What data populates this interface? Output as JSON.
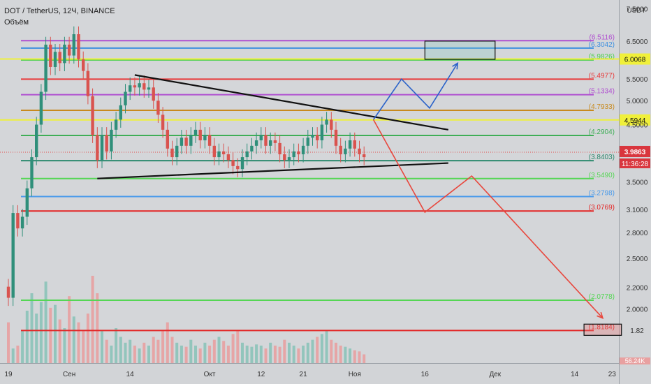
{
  "header": {
    "title": "DOT / TetherUS, 12Ч, BINANCE",
    "volume_label": "Объём"
  },
  "chart_data": {
    "type": "candlestick",
    "scale": "log",
    "ylim": [
      1.6,
      7.6
    ],
    "price_axis_unit": "USDT",
    "price_ticks": [
      7.5,
      6.5,
      5.5,
      5.0,
      4.5,
      4.0,
      3.5,
      3.1,
      2.8,
      2.5,
      2.2,
      2.0,
      1.82
    ],
    "time_ticks": [
      {
        "label": "19",
        "x": 0
      },
      {
        "label": "Сен",
        "x": 13
      },
      {
        "label": "14",
        "x": 26
      },
      {
        "label": "Окт",
        "x": 43
      },
      {
        "label": "12",
        "x": 54
      },
      {
        "label": "21",
        "x": 63
      },
      {
        "label": "Ноя",
        "x": 74
      },
      {
        "label": "16",
        "x": 89
      },
      {
        "label": "Дек",
        "x": 104
      },
      {
        "label": "14",
        "x": 121
      },
      {
        "label": "23",
        "x": 129
      }
    ],
    "fib_levels": [
      {
        "value": 6.5116,
        "label": "(6.5116)",
        "color": "#b050d0"
      },
      {
        "value": 6.3042,
        "label": "(6.3042)",
        "color": "#3d8fe0"
      },
      {
        "value": 5.9826,
        "label": "(5.9826)",
        "color": "#4cd04c"
      },
      {
        "value": 5.4977,
        "label": "(5.4977)",
        "color": "#e83a3a"
      },
      {
        "value": 5.1334,
        "label": "(5.1334)",
        "color": "#b050d0"
      },
      {
        "value": 4.7933,
        "label": "(4.7933)",
        "color": "#c88a1e"
      },
      {
        "value": 4.2904,
        "label": "(4.2904)",
        "color": "#3fae57"
      },
      {
        "value": 3.8403,
        "label": "(3.8403)",
        "color": "#2e8a6e"
      },
      {
        "value": 3.549,
        "label": "(3.5490)",
        "color": "#55d655"
      },
      {
        "value": 3.2798,
        "label": "(3.2798)",
        "color": "#4b9bea"
      },
      {
        "value": 3.0769,
        "label": "(3.0769)",
        "color": "#e32626"
      },
      {
        "value": 2.0778,
        "label": "(2.0778)",
        "color": "#55d655"
      },
      {
        "value": 1.8184,
        "label": "(1.8184)",
        "color": "#e32626"
      }
    ],
    "yellow_levels": [
      {
        "value": 6.0068,
        "label": "6.0068"
      },
      {
        "value": 4.5944,
        "label": "4.5944"
      }
    ],
    "current_price": {
      "value": 3.9863,
      "label": "3.9863",
      "countdown": "11:36:28"
    },
    "volume_tag": "56.24K",
    "triangle": {
      "upper": [
        [
          27,
          5.6
        ],
        [
          94,
          4.4
        ]
      ],
      "lower": [
        [
          19,
          3.55
        ],
        [
          94,
          3.8
        ]
      ]
    },
    "scenario_up": [
      [
        78,
        4.6
      ],
      [
        84,
        5.5
      ],
      [
        90,
        4.84
      ],
      [
        96,
        5.9
      ]
    ],
    "scenario_down": [
      [
        78,
        4.6
      ],
      [
        89,
        3.06
      ],
      [
        99,
        3.59
      ],
      [
        127,
        1.92
      ]
    ],
    "target_box_up": {
      "x1": 89,
      "x2": 104,
      "y1": 6.5,
      "y2": 6.0
    },
    "target_box_down": {
      "x1": 123,
      "x2": 131,
      "y1": 1.87,
      "y2": 1.78
    },
    "anchors": [
      [
        0,
        2.1
      ],
      [
        1,
        3.05
      ],
      [
        2,
        2.85
      ],
      [
        3,
        3.0
      ],
      [
        4,
        3.4
      ],
      [
        5,
        3.9
      ],
      [
        6,
        4.5
      ],
      [
        7,
        5.2
      ],
      [
        8,
        6.4
      ],
      [
        9,
        5.8
      ],
      [
        10,
        6.2
      ],
      [
        11,
        5.9
      ],
      [
        12,
        6.4
      ],
      [
        13,
        6.1
      ],
      [
        14,
        6.7
      ],
      [
        15,
        6.0
      ],
      [
        16,
        5.7
      ],
      [
        17,
        5.1
      ],
      [
        18,
        4.3
      ],
      [
        19,
        3.85
      ],
      [
        20,
        4.3
      ],
      [
        21,
        4.0
      ],
      [
        22,
        4.4
      ],
      [
        23,
        4.6
      ],
      [
        24,
        4.9
      ],
      [
        25,
        5.2
      ],
      [
        26,
        5.35
      ],
      [
        27,
        5.3
      ],
      [
        28,
        5.4
      ],
      [
        29,
        5.25
      ],
      [
        30,
        5.3
      ],
      [
        31,
        5.0
      ],
      [
        32,
        4.7
      ],
      [
        33,
        4.4
      ],
      [
        34,
        4.05
      ],
      [
        35,
        3.9
      ],
      [
        36,
        4.1
      ],
      [
        37,
        4.25
      ],
      [
        38,
        4.1
      ],
      [
        39,
        4.3
      ],
      [
        40,
        4.4
      ],
      [
        41,
        4.2
      ],
      [
        42,
        4.3
      ],
      [
        43,
        4.1
      ],
      [
        44,
        3.9
      ],
      [
        45,
        4.0
      ],
      [
        46,
        3.95
      ],
      [
        47,
        3.85
      ],
      [
        48,
        3.75
      ],
      [
        49,
        3.7
      ],
      [
        50,
        3.9
      ],
      [
        51,
        4.0
      ],
      [
        52,
        4.1
      ],
      [
        53,
        4.2
      ],
      [
        54,
        4.3
      ],
      [
        55,
        4.1
      ],
      [
        56,
        4.2
      ],
      [
        57,
        4.15
      ],
      [
        58,
        3.95
      ],
      [
        59,
        3.85
      ],
      [
        60,
        3.9
      ],
      [
        61,
        4.0
      ],
      [
        62,
        3.95
      ],
      [
        63,
        4.1
      ],
      [
        64,
        4.25
      ],
      [
        65,
        4.3
      ],
      [
        66,
        4.2
      ],
      [
        67,
        4.5
      ],
      [
        68,
        4.6
      ],
      [
        69,
        4.4
      ],
      [
        70,
        4.1
      ],
      [
        71,
        3.95
      ],
      [
        72,
        4.05
      ],
      [
        73,
        4.2
      ],
      [
        74,
        4.05
      ],
      [
        75,
        3.95
      ],
      [
        76,
        3.9
      ]
    ],
    "volumes": [
      70,
      25,
      30,
      55,
      90,
      120,
      85,
      105,
      140,
      95,
      100,
      75,
      60,
      115,
      80,
      70,
      55,
      85,
      150,
      120,
      55,
      40,
      30,
      60,
      45,
      35,
      40,
      30,
      25,
      35,
      30,
      45,
      40,
      55,
      70,
      45,
      35,
      30,
      28,
      40,
      30,
      25,
      35,
      30,
      40,
      45,
      38,
      30,
      50,
      55,
      35,
      30,
      28,
      32,
      30,
      25,
      35,
      30,
      28,
      40,
      35,
      30,
      25,
      30,
      35,
      40,
      45,
      50,
      55,
      40,
      35,
      30,
      28,
      25,
      22,
      20,
      15
    ]
  }
}
